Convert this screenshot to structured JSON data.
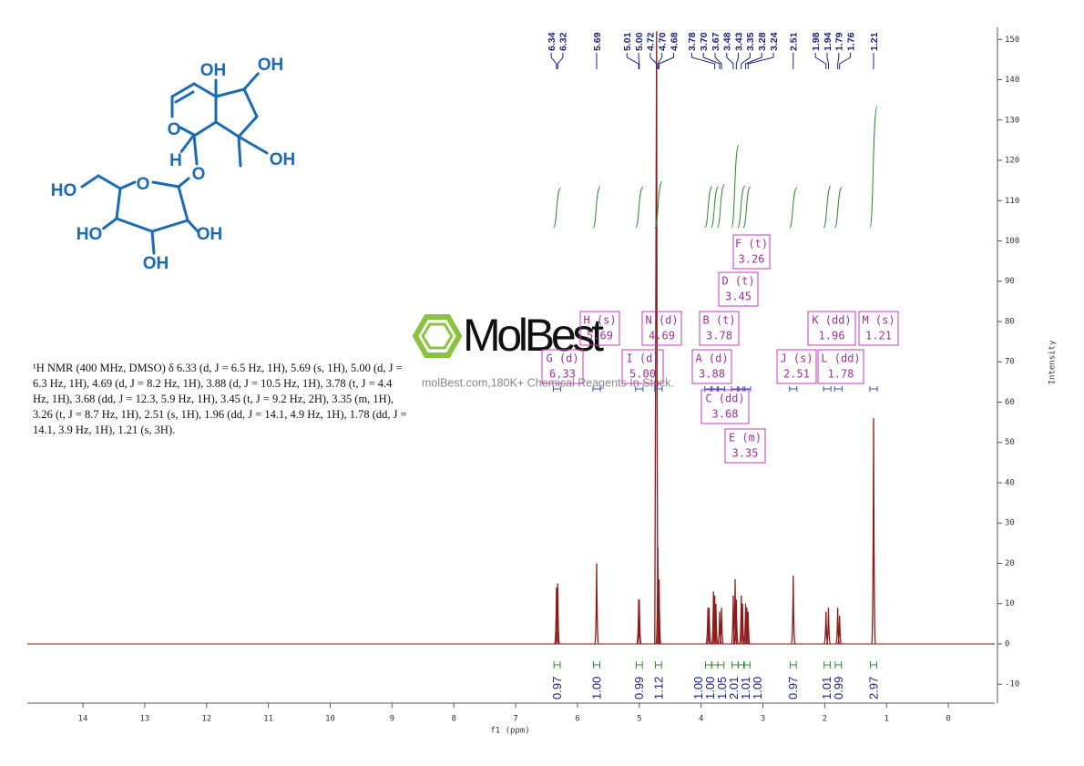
{
  "chart_data": {
    "type": "nmr",
    "x_label": "f1 (ppm)",
    "y_label": "Intensity",
    "xlim": [
      14.9,
      -0.75
    ],
    "xticks": [
      14,
      13,
      12,
      11,
      10,
      9,
      8,
      7,
      6,
      5,
      4,
      3,
      2,
      1,
      0
    ],
    "ylim": [
      -14.7,
      153
    ],
    "yticks": [
      -10,
      0,
      10,
      20,
      30,
      40,
      50,
      60,
      70,
      80,
      90,
      100,
      110,
      120,
      130,
      140,
      150
    ],
    "spectrum": {
      "color": "#8b1a1a",
      "x": [
        6.34,
        6.32,
        5.69,
        5.01,
        5.0,
        4.72,
        4.7,
        4.68,
        3.89,
        3.87,
        3.8,
        3.78,
        3.76,
        3.7,
        3.67,
        3.48,
        3.45,
        3.43,
        3.35,
        3.33,
        3.28,
        3.26,
        3.24,
        2.51,
        1.98,
        1.94,
        1.79,
        1.76,
        1.21
      ],
      "values": [
        14,
        15,
        20,
        11,
        11,
        152,
        24,
        16,
        9,
        9,
        13,
        12,
        10,
        8,
        9,
        12,
        16,
        11,
        12,
        10,
        10,
        9,
        8,
        17,
        8,
        9,
        9,
        7,
        56
      ]
    },
    "peaks": {
      "color": "#1a237e",
      "values": [
        6.34,
        6.32,
        5.69,
        5.01,
        5.0,
        4.72,
        4.7,
        4.68,
        3.78,
        3.7,
        3.67,
        3.48,
        3.43,
        3.35,
        3.28,
        3.24,
        2.51,
        1.98,
        1.94,
        1.79,
        1.76,
        1.21
      ],
      "value_labels": [
        "6.34",
        "6.32",
        "5.69",
        "5.01",
        "5.00",
        "4.72",
        "4.70",
        "4.68",
        "3.78",
        "3.70",
        "3.67",
        "3.48",
        "3.43",
        "3.35",
        "3.28",
        "3.24",
        "2.51",
        "1.98",
        "1.94",
        "1.79",
        "1.76",
        "1.21"
      ]
    },
    "integrals": {
      "color": "#2e8b2e",
      "x": [
        6.33,
        5.69,
        5.0,
        4.69,
        3.88,
        3.78,
        3.68,
        3.45,
        3.35,
        3.26,
        2.51,
        1.96,
        1.78,
        1.21
      ],
      "values": [
        0.97,
        1.0,
        0.99,
        1.12,
        1.0,
        1.0,
        1.05,
        2.01,
        1.01,
        1.0,
        0.97,
        1.01,
        0.99,
        2.97
      ],
      "value_labels": [
        "0.97",
        "1.00",
        "0.99",
        "1.12",
        "1.00",
        "1.00",
        "1.05",
        "2.01",
        "1.01",
        "1.00",
        "0.97",
        "1.01",
        "0.99",
        "2.97"
      ]
    },
    "multiplets": {
      "color": "#c838c0",
      "labels": [
        "F (t)",
        "D (t)",
        "H (s)",
        "N (d)",
        "B (t)",
        "K (dd)",
        "M (s)",
        "G (d)",
        "I (d)",
        "A (d)",
        "J (s)",
        "L (dd)",
        "C (dd)",
        "E (m)"
      ],
      "shifts": [
        3.26,
        3.45,
        5.69,
        4.69,
        3.78,
        1.96,
        1.21,
        6.33,
        5.0,
        3.88,
        2.51,
        1.78,
        3.68,
        3.35
      ],
      "shift_labels": [
        "3.26",
        "3.45",
        "5.69",
        "4.69",
        "3.78",
        "1.96",
        "1.21",
        "6.33",
        "5.00",
        "3.88",
        "2.51",
        "1.78",
        "3.68",
        "3.35"
      ]
    }
  },
  "description": [
    "¹H NMR (400 MHz, DMSO) δ 6.33 (d, J = 6.5 Hz, 1H), 5.69 (s, 1H), 5.00 (d, J =",
    "6.3 Hz, 1H), 4.69 (d, J = 8.2 Hz, 1H), 3.88 (d, J = 10.5 Hz, 1H), 3.78 (t, J = 4.4",
    "Hz, 1H), 3.68 (dd, J = 12.3, 5.9 Hz, 1H), 3.45 (t, J = 9.2 Hz, 2H), 3.35 (m, 1H),",
    "3.26 (t, J = 8.7 Hz, 1H), 2.51 (s, 1H), 1.96 (dd, J = 14.1, 4.9 Hz, 1H), 1.78 (dd, J =",
    "14.1, 3.9 Hz, 1H), 1.21 (s, 3H)."
  ],
  "structure": {
    "atoms": [
      "OH",
      "OH",
      "O",
      "H",
      "O",
      "OH",
      "HO",
      "O",
      "HO",
      "OH",
      "OH"
    ]
  },
  "watermark": {
    "title": "MolBest",
    "subtitle": "molBest.com,180K+ Chemical Reagents In Stock."
  }
}
